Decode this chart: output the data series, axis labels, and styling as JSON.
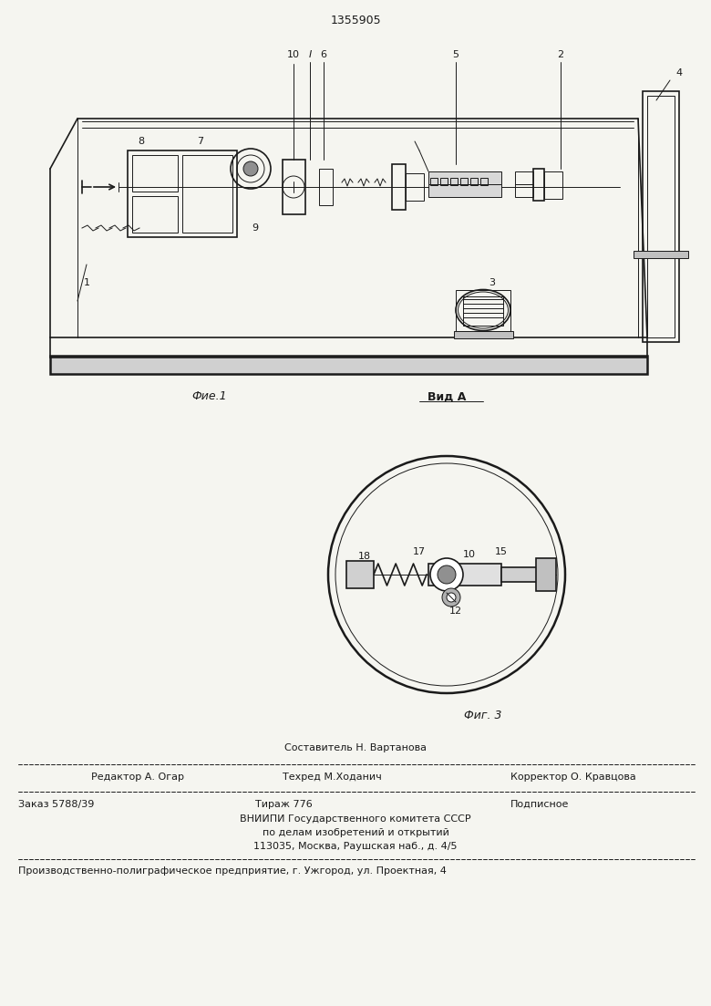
{
  "patent_number": "1355905",
  "bg_color": "#f5f5f0",
  "line_color": "#1a1a1a",
  "fig1_caption": "Фие.1",
  "fig3_caption": "Фиг. 3",
  "vida_caption": "Вид А",
  "footer": {
    "line1_left": "Редактор А. Огар",
    "line1_center": "Техред М.Ходанич",
    "line1_right": "Корректор О. Кравцова",
    "line1_above": "Составитель Н. Вартанова",
    "line2_left": "Заказ 5788/39",
    "line2_center": "Тираж 776",
    "line2_right": "Подписное",
    "line3": "ВНИИПИ Государственного комитета СССР",
    "line4": "по делам изобретений и открытий",
    "line5": "113035, Москва, Раушская наб., д. 4/5",
    "line6": "Производственно-полиграфическое предприятие, г. Ужгород, ул. Проектная, 4"
  }
}
